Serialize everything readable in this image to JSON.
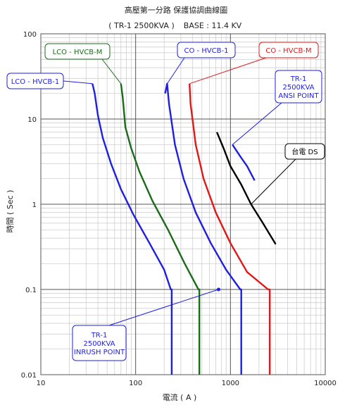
{
  "title": "高壓第一分路 保護協調曲線圖",
  "subtitle_left": "( TR-1  2500KVA )",
  "subtitle_right": "BASE : 11.4 KV",
  "chart_data": {
    "type": "line",
    "x_scale": "log",
    "y_scale": "log",
    "xlim": [
      10,
      10000
    ],
    "ylim": [
      0.01,
      100
    ],
    "xlabel": "電流 ( A )",
    "ylabel": "時間 ( Sec )",
    "x_ticks": [
      "10",
      "100",
      "1000",
      "10000"
    ],
    "y_ticks": [
      "0.01",
      "0.1",
      "1",
      "10",
      "100"
    ],
    "grid": true,
    "series": [
      {
        "name": "LCO - HVCB-1",
        "color": "#1f1fe0",
        "points": [
          [
            35,
            26
          ],
          [
            37,
            20
          ],
          [
            40,
            11
          ],
          [
            45,
            6
          ],
          [
            55,
            3
          ],
          [
            70,
            1.5
          ],
          [
            95,
            0.75
          ],
          [
            140,
            0.35
          ],
          [
            200,
            0.17
          ],
          [
            235,
            0.1
          ],
          [
            240,
            0.1
          ],
          [
            240,
            0.01
          ]
        ]
      },
      {
        "name": "LCO - HVCB-M",
        "color": "#1a6b1a",
        "points": [
          [
            70,
            26
          ],
          [
            73,
            18
          ],
          [
            78,
            8
          ],
          [
            90,
            4.5
          ],
          [
            110,
            2.4
          ],
          [
            150,
            1.1
          ],
          [
            220,
            0.5
          ],
          [
            330,
            0.2
          ],
          [
            460,
            0.1
          ],
          [
            470,
            0.1
          ],
          [
            470,
            0.01
          ]
        ]
      },
      {
        "name": "CO - HVCB-1",
        "color": "#1f1fe0",
        "points": [
          [
            205,
            20
          ],
          [
            215,
            26
          ],
          [
            225,
            15
          ],
          [
            260,
            5
          ],
          [
            320,
            2
          ],
          [
            430,
            0.8
          ],
          [
            620,
            0.35
          ],
          [
            900,
            0.17
          ],
          [
            1270,
            0.1
          ],
          [
            1300,
            0.1
          ],
          [
            1300,
            0.01
          ]
        ]
      },
      {
        "name": "CO - HVCB-M",
        "color": "#e01818",
        "points": [
          [
            370,
            26
          ],
          [
            380,
            15
          ],
          [
            430,
            5
          ],
          [
            520,
            2
          ],
          [
            700,
            0.8
          ],
          [
            1000,
            0.35
          ],
          [
            1500,
            0.16
          ],
          [
            2500,
            0.1
          ],
          [
            2600,
            0.1
          ],
          [
            2600,
            0.01
          ]
        ]
      },
      {
        "name": "台電 DS",
        "color": "#000000",
        "points": [
          [
            720,
            7
          ],
          [
            850,
            4.5
          ],
          [
            1000,
            2.8
          ],
          [
            1300,
            1.7
          ],
          [
            1650,
            1.0
          ],
          [
            2200,
            0.6
          ],
          [
            3000,
            0.34
          ]
        ]
      },
      {
        "name": "TR-1 2500KVA ANSI POINT",
        "color": "#1f1fe0",
        "points": [
          [
            1050,
            5
          ],
          [
            1300,
            3.5
          ],
          [
            1500,
            2.8
          ],
          [
            1800,
            1.9
          ]
        ]
      }
    ],
    "points": [
      {
        "name": "TR-1 2500KVA INRUSH POINT",
        "x": 750,
        "y": 0.1,
        "color": "#1f1fe0"
      }
    ],
    "annotations": [
      {
        "text": "LCO - HVCB-M",
        "color": "#1a6b1a",
        "target": [
          70,
          26
        ]
      },
      {
        "text": "CO - HVCB-1",
        "color": "#1f1fe0",
        "target": [
          210,
          25
        ]
      },
      {
        "text": "CO - HVCB-M",
        "color": "#e01818",
        "target": [
          370,
          26
        ]
      },
      {
        "text": "LCO - HVCB-1",
        "color": "#1f1fe0",
        "target": [
          35,
          26
        ]
      },
      {
        "text": "TR-1\n2500KVA\nANSI POINT",
        "color": "#1f1fe0",
        "target": [
          1050,
          5
        ]
      },
      {
        "text": "台電 DS",
        "color": "#000000",
        "target": [
          1650,
          1.0
        ]
      },
      {
        "text": "TR-1\n2500KVA\nINRUSH POINT",
        "color": "#1f1fe0",
        "target": [
          750,
          0.1
        ]
      }
    ]
  }
}
